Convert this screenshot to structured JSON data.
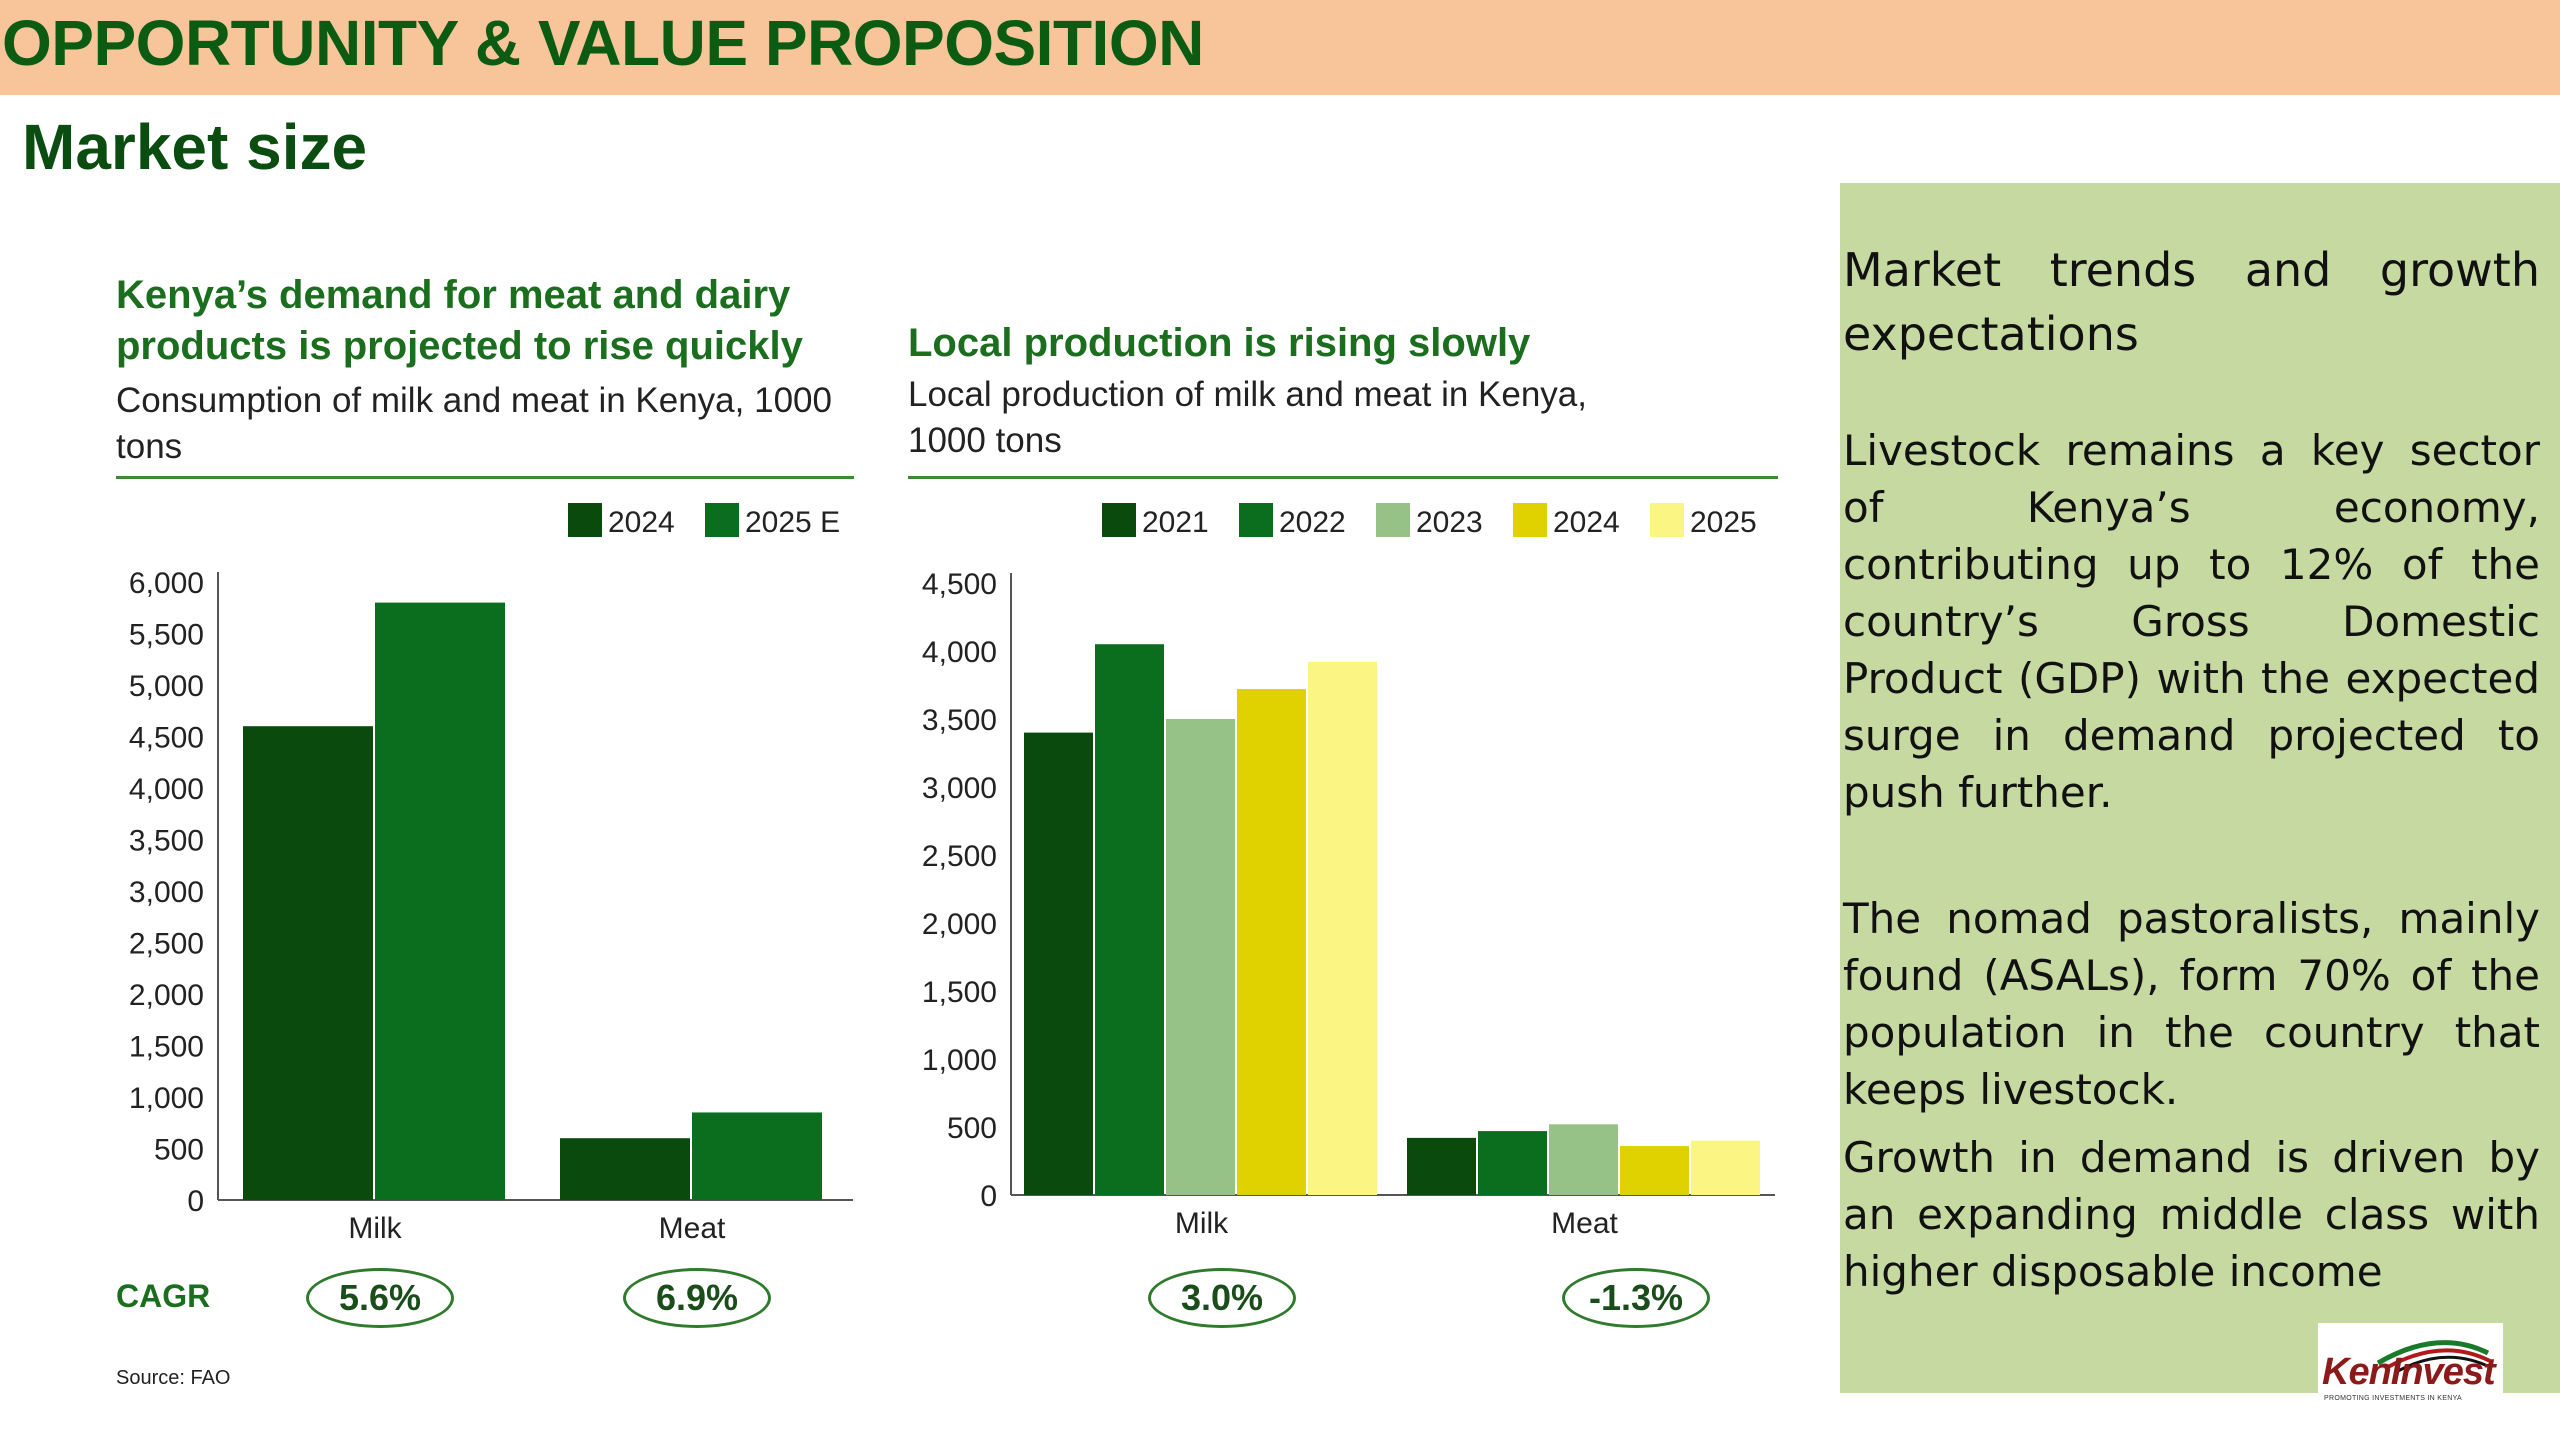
{
  "header": {
    "banner_title": "OPPORTUNITY & VALUE PROPOSITION",
    "section_title": "Market size"
  },
  "chart_data": [
    {
      "type": "bar",
      "title": "Kenya’s demand for meat and dairy products is projected to rise quickly",
      "subtitle": "Consumption of milk and meat in Kenya, 1000 tons",
      "categories": [
        "Milk",
        "Meat"
      ],
      "series": [
        {
          "name": "2024",
          "color": "#0a4a0c",
          "values": [
            4600,
            600
          ]
        },
        {
          "name": "2025 E",
          "color": "#0a6e1e",
          "values": [
            5800,
            850
          ]
        }
      ],
      "ylim": [
        0,
        6000
      ],
      "yticks": [
        "0",
        "500",
        "1,000",
        "1,500",
        "2,000",
        "2,500",
        "3,000",
        "3,500",
        "4,000",
        "4,500",
        "5,000",
        "5,500",
        "6,000"
      ],
      "legend": "top-right",
      "grid": false,
      "cagr": [
        "5.6%",
        "6.9%"
      ]
    },
    {
      "type": "bar",
      "title": "Local production is rising slowly",
      "subtitle": "Local production of milk and meat in Kenya, 1000 tons",
      "categories": [
        "Milk",
        "Meat"
      ],
      "series": [
        {
          "name": "2021",
          "color": "#0a4a0c",
          "values": [
            3400,
            420
          ]
        },
        {
          "name": "2022",
          "color": "#0a6e1e",
          "values": [
            4050,
            470
          ]
        },
        {
          "name": "2023",
          "color": "#96c187",
          "values": [
            3500,
            520
          ]
        },
        {
          "name": "2024",
          "color": "#dfd200",
          "values": [
            3720,
            360
          ]
        },
        {
          "name": "2025",
          "color": "#fbf683",
          "values": [
            3920,
            400
          ]
        }
      ],
      "ylim": [
        0,
        4500
      ],
      "yticks": [
        "0",
        "500",
        "1,000",
        "1,500",
        "2,000",
        "2,500",
        "3,000",
        "3,500",
        "4,000",
        "4,500"
      ],
      "legend": "top-right",
      "grid": false,
      "cagr": [
        "3.0%",
        "-1.3%"
      ]
    }
  ],
  "cagr_label": "CAGR",
  "source": "Source: FAO",
  "side": {
    "heading": "Market trends and growth expectations",
    "p1": "Livestock remains a key sector of Kenya’s economy, contributing up to 12% of the country’s Gross Domestic Product (GDP) with the expected surge in demand projected to push further.",
    "p2": "The nomad pastoralists, mainly found (ASALs), form 70% of the population in the country that keeps livestock.",
    "p3": "Growth in demand is driven by an expanding middle class with higher disposable income"
  },
  "logo": {
    "name": "KenInvest",
    "tagline": "PROMOTING INVESTMENTS IN KENYA"
  }
}
